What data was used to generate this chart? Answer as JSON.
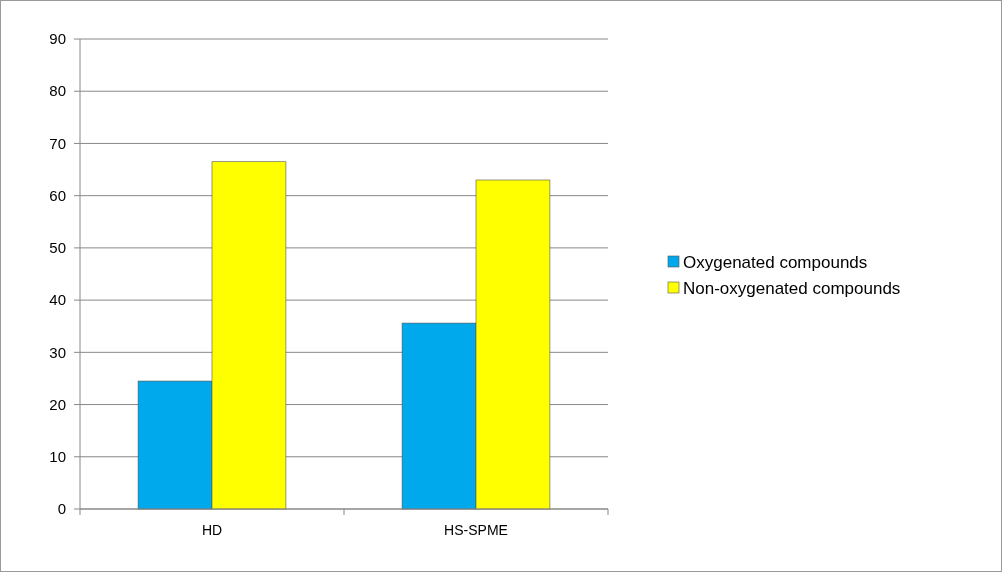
{
  "chart_data": {
    "type": "bar",
    "categories": [
      "HD",
      "HS-SPME"
    ],
    "series": [
      {
        "name": "Oxygenated compounds",
        "color": "#00a8ec",
        "values": [
          24.5,
          35.6
        ]
      },
      {
        "name": "Non-oxygenated compounds",
        "color": "#ffff00",
        "values": [
          66.5,
          63.0
        ]
      }
    ],
    "ylim": [
      0,
      90
    ],
    "yticks": [
      0,
      10,
      20,
      30,
      40,
      50,
      60,
      70,
      80,
      90
    ],
    "grid": "y",
    "legend": "right"
  }
}
